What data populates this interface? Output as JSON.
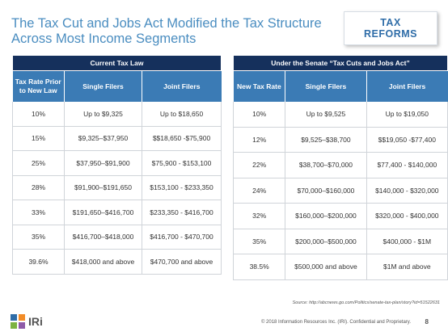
{
  "title": "The Tax Cut and Jobs Act Modified the Tax Structure Across Most Income Segments",
  "badge": {
    "line1": "TAX",
    "line2": "REFORMS"
  },
  "current": {
    "heading": "Current Tax Law",
    "columns": [
      "Tax Rate Prior to New Law",
      "Single Filers",
      "Joint Filers"
    ],
    "rows": [
      [
        "10%",
        "Up to $9,325",
        "Up to $18,650"
      ],
      [
        "15%",
        "$9,325–$37,950",
        "$$18,650 -$75,900"
      ],
      [
        "25%",
        "$37,950–$91,900",
        "$75,900 - $153,100"
      ],
      [
        "28%",
        "$91,900–$191,650",
        "$153,100 - $233,350"
      ],
      [
        "33%",
        "$191,650–$416,700",
        "$233,350 - $416,700"
      ],
      [
        "35%",
        "$416,700–$418,000",
        "$416,700 - $470,700"
      ],
      [
        "39.6%",
        "$418,000 and above",
        "$470,700 and above"
      ]
    ]
  },
  "senate": {
    "heading": "Under the Senate “Tax Cuts and Jobs Act”",
    "columns": [
      "New Tax Rate",
      "Single Filers",
      "Joint Filers"
    ],
    "rows": [
      [
        "10%",
        "Up to $9,525",
        "Up to $19,050"
      ],
      [
        "12%",
        "$9,525–$38,700",
        "$$19,050 -$77,400"
      ],
      [
        "22%",
        "$38,700–$70,000",
        "$77,400 - $140,000"
      ],
      [
        "24%",
        "$70,000–$160,000",
        "$140,000 - $320,000"
      ],
      [
        "32%",
        "$160,000–$200,000",
        "$320,000 - $400,000"
      ],
      [
        "35%",
        "$200,000–$500,000",
        "$400,000 - $1M"
      ],
      [
        "38.5%",
        "$500,000 and above",
        "$1M and above"
      ]
    ]
  },
  "source": "Source: http://abcnews.go.com/Politics/senate-tax-plan/story?id=51522631",
  "footer": {
    "logo_text": "IRi",
    "copyright": "© 2018 Information Resources Inc. (IRI). Confidential and Proprietary.",
    "page_number": "8"
  },
  "colors": {
    "title": "#4a8dc0",
    "table_header": "#15305c",
    "column_header": "#3b7bb5",
    "badge_text": "#2f6da8"
  }
}
